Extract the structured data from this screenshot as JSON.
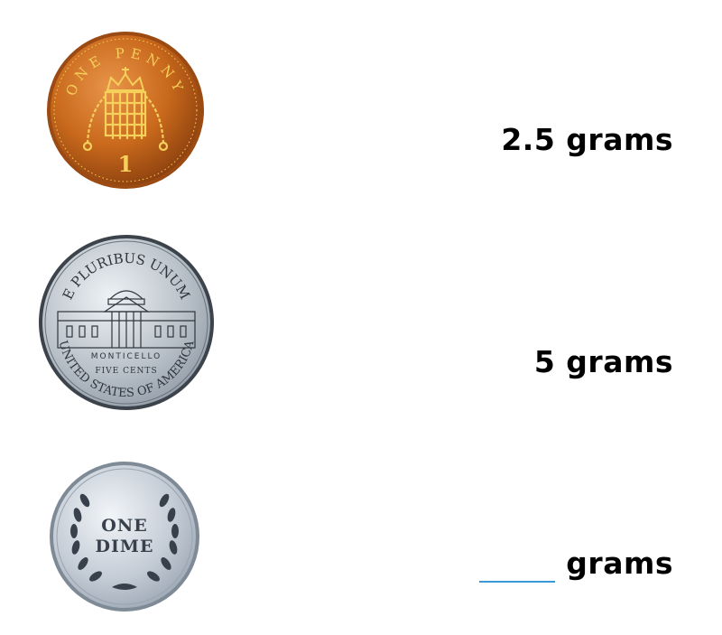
{
  "coins": [
    {
      "name": "penny",
      "inscription_top": "ONE PENNY",
      "numeral": "1",
      "weight_value": "2.5",
      "unit": "grams",
      "colors": {
        "rim": "#9a4a12",
        "face": "#c9691c",
        "highlight": "#e8954a",
        "emboss": "#f5d05a"
      }
    },
    {
      "name": "nickel",
      "inscription_top": "E PLURIBUS UNUM",
      "building": "MONTICELLO",
      "value_text": "FIVE CENTS",
      "inscription_bottom": "UNITED STATES OF AMERICA",
      "weight_value": "5",
      "unit": "grams",
      "colors": {
        "rim": "#3c434b",
        "face": "#b9c1c9",
        "highlight": "#e7ecf0",
        "emboss": "#2f353c"
      }
    },
    {
      "name": "dime",
      "value_line1": "ONE",
      "value_line2": "DIME",
      "weight_value": "",
      "unit": "grams",
      "colors": {
        "rim": "#7f8a97",
        "face": "#c3cbd5",
        "highlight": "#edf1f5",
        "emboss": "#38414b"
      }
    }
  ],
  "answer_line_color": "#3a9ad9"
}
